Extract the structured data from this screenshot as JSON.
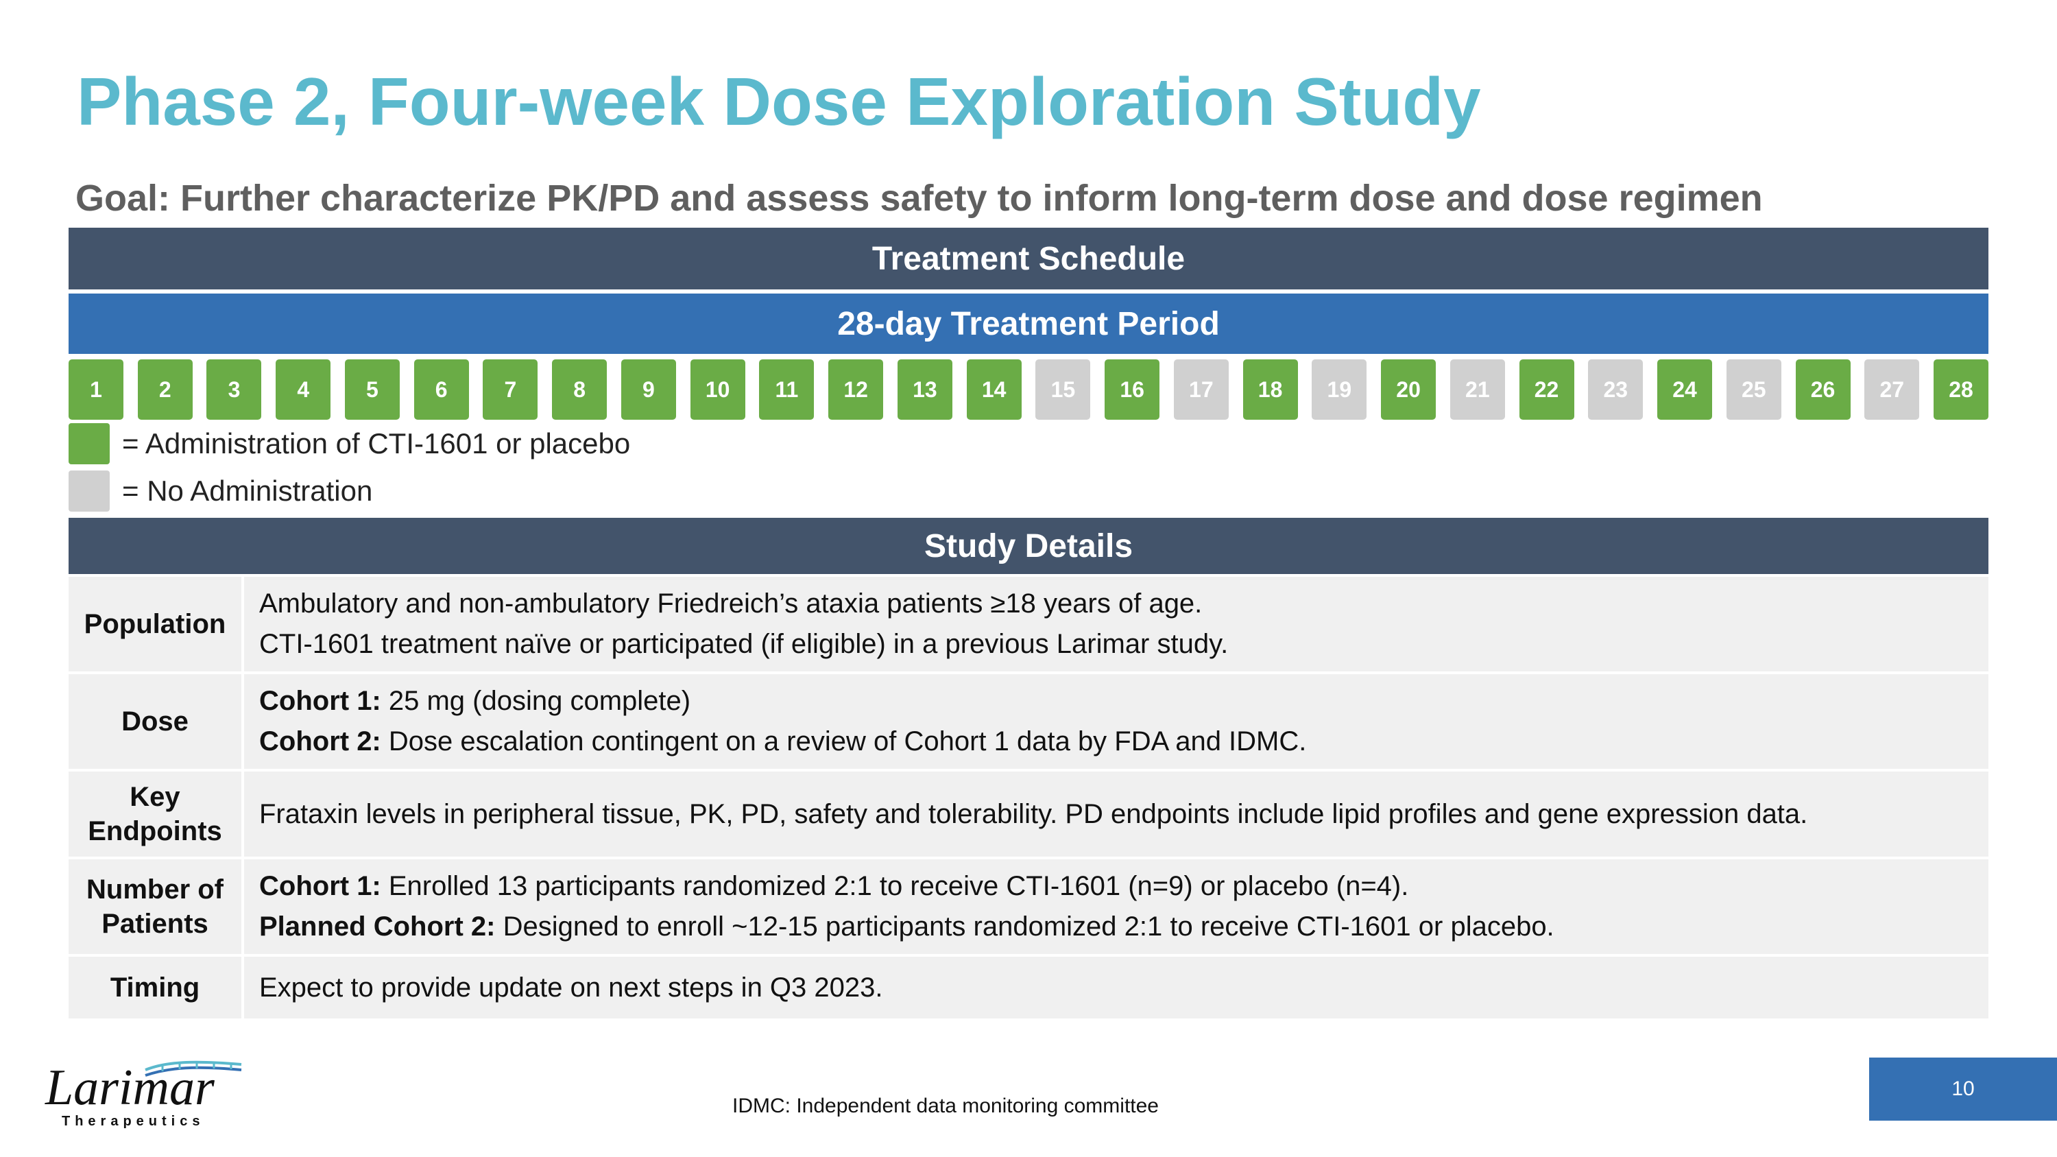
{
  "title": "Phase 2, Four-week Dose Exploration Study",
  "goal": "Goal: Further characterize PK/PD and assess safety to inform long-term dose and dose regimen",
  "schedule_header": "Treatment Schedule",
  "period_header": "28-day Treatment Period",
  "days": [
    {
      "label": "1",
      "administered": true
    },
    {
      "label": "2",
      "administered": true
    },
    {
      "label": "3",
      "administered": true
    },
    {
      "label": "4",
      "administered": true
    },
    {
      "label": "5",
      "administered": true
    },
    {
      "label": "6",
      "administered": true
    },
    {
      "label": "7",
      "administered": true
    },
    {
      "label": "8",
      "administered": true
    },
    {
      "label": "9",
      "administered": true
    },
    {
      "label": "10",
      "administered": true
    },
    {
      "label": "11",
      "administered": true
    },
    {
      "label": "12",
      "administered": true
    },
    {
      "label": "13",
      "administered": true
    },
    {
      "label": "14",
      "administered": true
    },
    {
      "label": "15",
      "administered": false
    },
    {
      "label": "16",
      "administered": true
    },
    {
      "label": "17",
      "administered": false
    },
    {
      "label": "18",
      "administered": true
    },
    {
      "label": "19",
      "administered": false
    },
    {
      "label": "20",
      "administered": true
    },
    {
      "label": "21",
      "administered": false
    },
    {
      "label": "22",
      "administered": true
    },
    {
      "label": "23",
      "administered": false
    },
    {
      "label": "24",
      "administered": true
    },
    {
      "label": "25",
      "administered": false
    },
    {
      "label": "26",
      "administered": true
    },
    {
      "label": "27",
      "administered": false
    },
    {
      "label": "28",
      "administered": true
    }
  ],
  "colors": {
    "administered": "#6aac46",
    "not_administered": "#d0d0d0",
    "title": "#5bb9cd",
    "dark_header": "#43546b",
    "blue_header": "#3470b3"
  },
  "legend": {
    "administered": "= Administration of CTI-1601 or placebo",
    "not_administered": "= No Administration"
  },
  "details_header": "Study Details",
  "details": {
    "population": {
      "label": "Population",
      "line1": "Ambulatory and non-ambulatory Friedreich’s ataxia patients ≥18 years of age.",
      "line2": "CTI-1601 treatment naïve or participated (if eligible) in a previous Larimar study."
    },
    "dose": {
      "label": "Dose",
      "line1_bold": "Cohort 1:",
      "line1": " 25 mg (dosing complete)",
      "line2_bold": "Cohort 2:",
      "line2": " Dose escalation contingent on a review of Cohort 1 data by FDA and IDMC."
    },
    "endpoints": {
      "label_line1": "Key",
      "label_line2": "Endpoints",
      "text": "Frataxin levels in peripheral tissue, PK, PD, safety and tolerability. PD endpoints include lipid profiles and gene expression data."
    },
    "patients": {
      "label_line1": "Number of",
      "label_line2": "Patients",
      "line1_bold": "Cohort 1:",
      "line1": " Enrolled 13 participants randomized 2:1 to receive CTI-1601 (n=9) or placebo (n=4).",
      "line2_bold": "Planned Cohort 2:",
      "line2": " Designed to enroll ~12-15 participants randomized 2:1 to receive CTI-1601 or placebo."
    },
    "timing": {
      "label": "Timing",
      "text": "Expect to provide update on next steps in Q3 2023."
    }
  },
  "logo": {
    "name": "Larimar",
    "sub": "Therapeutics"
  },
  "footnote": "IDMC: Independent data monitoring committee",
  "page_number": "10"
}
